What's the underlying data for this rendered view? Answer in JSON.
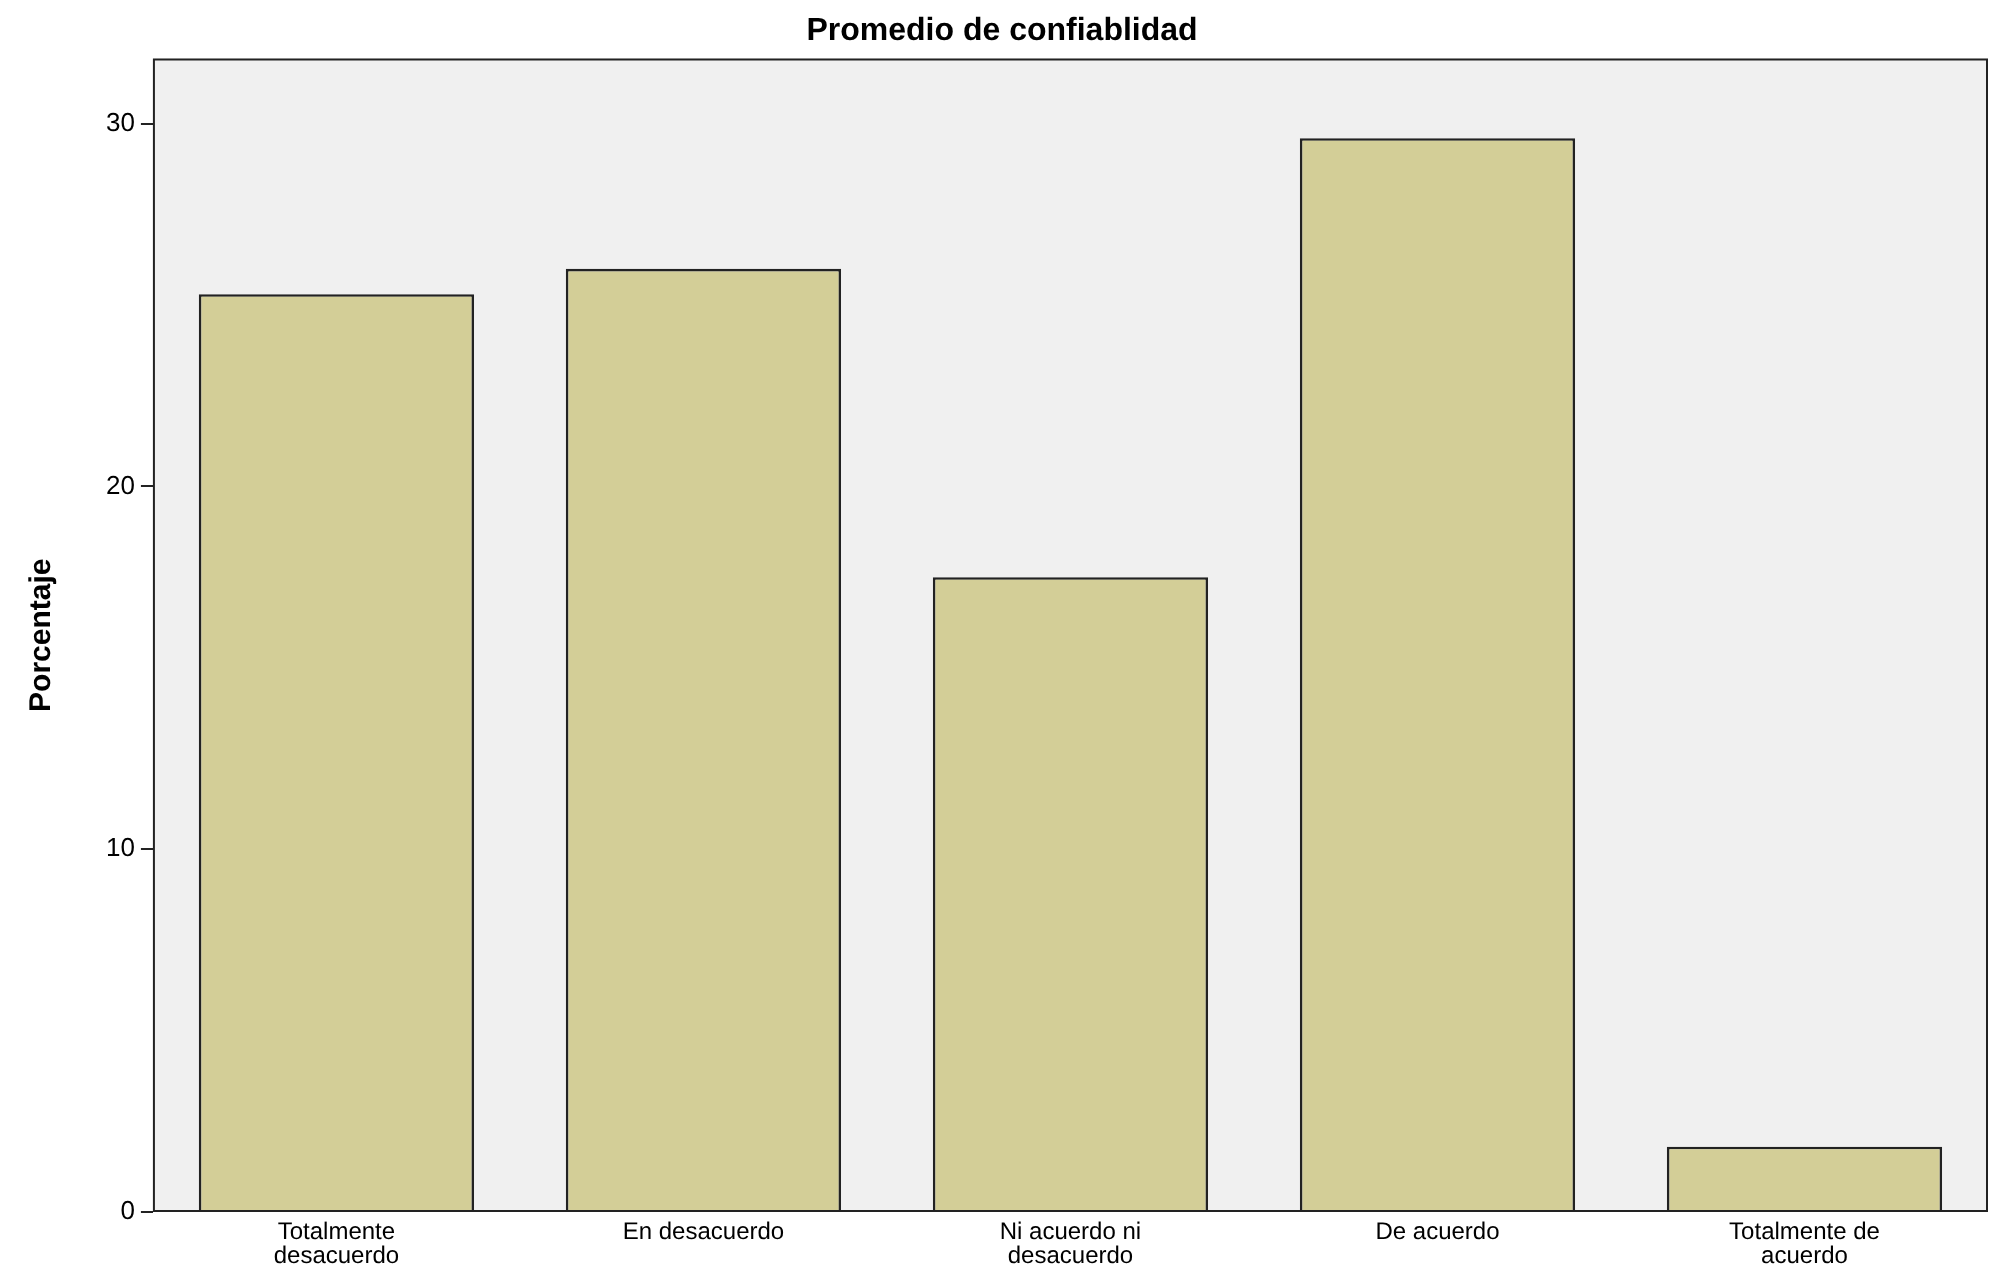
{
  "chart_data": {
    "type": "bar",
    "title": "Promedio de confiablidad",
    "ylabel": "Porcentaje",
    "categories": [
      "Totalmente desacuerdo",
      "En desacuerdo",
      "Ni acuerdo ni desacuerdo",
      "De acuerdo",
      "Totalmente de acuerdo"
    ],
    "values": [
      25.3,
      26.0,
      17.5,
      29.6,
      1.8
    ],
    "color": "#d3ce97",
    "ylim": [
      0,
      31.8
    ],
    "yticks": [
      0,
      10,
      20,
      30
    ],
    "grid": false,
    "legend": false
  }
}
